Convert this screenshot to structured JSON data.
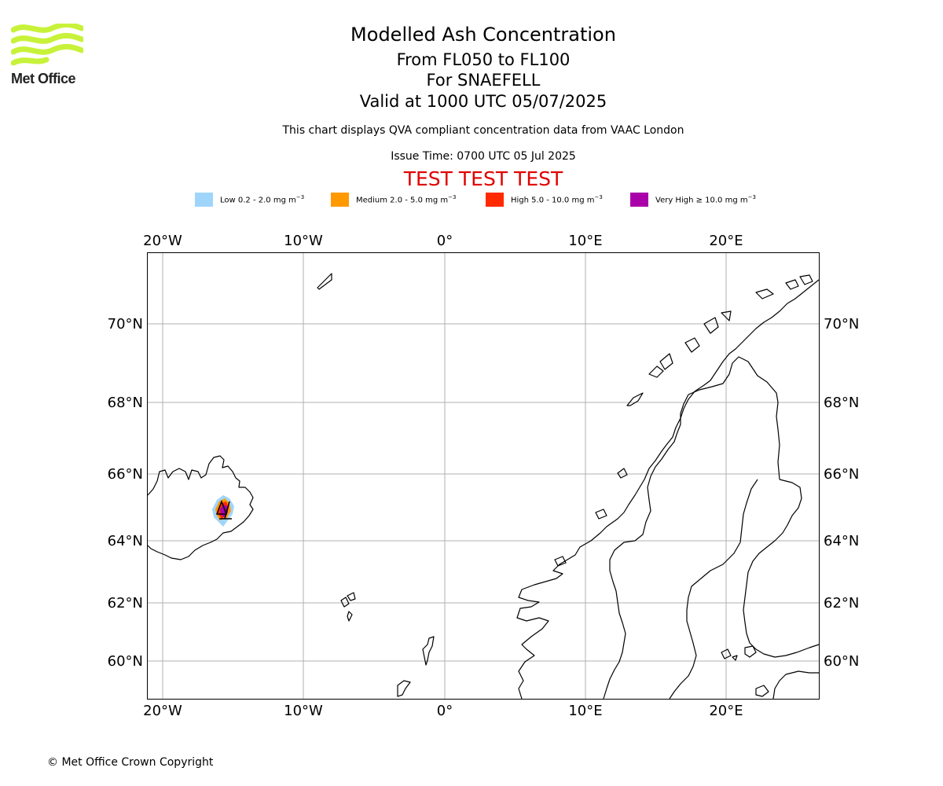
{
  "logo": {
    "text": "Met Office",
    "colors": {
      "waves": "#c8f23a",
      "text": "#222222"
    }
  },
  "header": {
    "title": "Modelled Ash Concentration",
    "flight_levels": "From FL050 to FL100",
    "volcano": "For SNAEFELL",
    "valid_time": "Valid at 1000 UTC 05/07/2025",
    "note": "This chart displays QVA compliant concentration data from VAAC London",
    "issue_time": "Issue Time: 0700 UTC 05 Jul 2025",
    "test_banner": "TEST TEST TEST"
  },
  "legend": [
    {
      "label": "Low 0.2 - 2.0 mg m",
      "sup": "−3",
      "color": "#a0d5fb"
    },
    {
      "label": "Medium 2.0 - 5.0 mg m",
      "sup": "−3",
      "color": "#ff9900"
    },
    {
      "label": "High 5.0 - 10.0 mg m",
      "sup": "−3",
      "color": "#ff2a00"
    },
    {
      "label": "Very High  ≥  10.0 mg m",
      "sup": "−3",
      "color": "#aa00aa"
    }
  ],
  "map": {
    "lon_labels": [
      "20°W",
      "10°W",
      "0°",
      "10°E",
      "20°E"
    ],
    "lat_labels": [
      "70°N",
      "68°N",
      "66°N",
      "64°N",
      "62°N",
      "60°N"
    ],
    "gridlines": true,
    "lon_range": [
      -21,
      26.5
    ],
    "lat_range": [
      59,
      72
    ]
  },
  "footer": {
    "copyright": "© Met Office Crown Copyright"
  }
}
